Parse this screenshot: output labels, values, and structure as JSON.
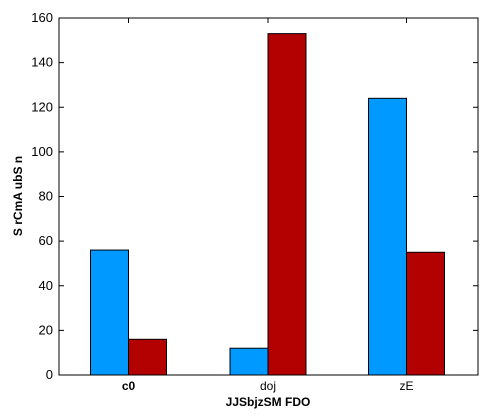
{
  "chart_data": {
    "type": "bar",
    "title": "",
    "xlabel": "JJSbjzSM FDO",
    "ylabel": "S rCmA ubS n",
    "categories": [
      "c0",
      "doj",
      "zE"
    ],
    "category_bold": [
      true,
      false,
      false
    ],
    "series": [
      {
        "values": [
          56,
          12,
          124
        ],
        "color": "#0099ff"
      },
      {
        "values": [
          16,
          153,
          55
        ],
        "color": "#b30000"
      }
    ],
    "ylim": [
      0,
      160
    ],
    "yticks": [
      0,
      20,
      40,
      60,
      80,
      100,
      120,
      140,
      160
    ],
    "grid": false,
    "legend": "none"
  }
}
